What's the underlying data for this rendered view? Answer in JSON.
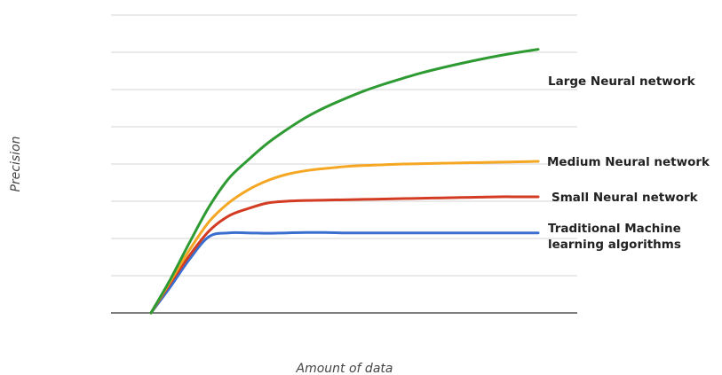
{
  "chart_data": {
    "type": "line",
    "title": "",
    "xlabel": "Amount of data",
    "ylabel": "Precision",
    "grid": true,
    "legend": "inline-right",
    "xlim": [
      0,
      1
    ],
    "ylim": [
      0,
      8
    ],
    "series": [
      {
        "name": "Large Neural network",
        "color": "#2e9a32",
        "x": [
          0,
          0.05,
          0.1,
          0.15,
          0.2,
          0.25,
          0.3,
          0.35,
          0.4,
          0.45,
          0.5,
          0.55,
          0.6,
          0.65,
          0.7,
          0.75,
          0.8,
          0.85,
          0.9,
          0.95,
          1.0
        ],
        "values": [
          0,
          0.9,
          1.9,
          2.85,
          3.6,
          4.1,
          4.55,
          4.92,
          5.25,
          5.52,
          5.75,
          5.96,
          6.14,
          6.3,
          6.45,
          6.58,
          6.7,
          6.81,
          6.91,
          7.0,
          7.08
        ]
      },
      {
        "name": "Medium Neural network",
        "color": "#f5a623",
        "x": [
          0,
          0.05,
          0.1,
          0.15,
          0.2,
          0.25,
          0.3,
          0.35,
          0.4,
          0.45,
          0.5,
          0.55,
          0.6,
          0.65,
          0.7,
          0.75,
          0.8,
          0.85,
          0.9,
          0.95,
          1.0
        ],
        "values": [
          0,
          0.85,
          1.7,
          2.45,
          2.95,
          3.3,
          3.55,
          3.72,
          3.82,
          3.88,
          3.93,
          3.96,
          3.98,
          4.0,
          4.01,
          4.02,
          4.03,
          4.04,
          4.05,
          4.06,
          4.07
        ]
      },
      {
        "name": "Small Neural network",
        "color": "#d33b22",
        "x": [
          0,
          0.05,
          0.1,
          0.15,
          0.2,
          0.25,
          0.3,
          0.35,
          0.4,
          0.45,
          0.5,
          0.55,
          0.6,
          0.65,
          0.7,
          0.75,
          0.8,
          0.85,
          0.9,
          0.95,
          1.0
        ],
        "values": [
          0,
          0.8,
          1.55,
          2.2,
          2.6,
          2.8,
          2.95,
          3.0,
          3.02,
          3.03,
          3.04,
          3.05,
          3.06,
          3.07,
          3.08,
          3.09,
          3.1,
          3.11,
          3.12,
          3.12,
          3.12
        ]
      },
      {
        "name": "Traditional Machine learning algorithms",
        "color": "#3a6fd0",
        "x": [
          0,
          0.05,
          0.1,
          0.15,
          0.2,
          0.25,
          0.3,
          0.35,
          0.4,
          0.45,
          0.5,
          0.55,
          0.6,
          0.65,
          0.7,
          0.75,
          0.8,
          0.85,
          0.9,
          0.95,
          1.0
        ],
        "values": [
          0,
          0.7,
          1.45,
          2.05,
          2.15,
          2.15,
          2.14,
          2.15,
          2.16,
          2.16,
          2.15,
          2.15,
          2.15,
          2.15,
          2.15,
          2.15,
          2.15,
          2.15,
          2.15,
          2.15,
          2.15
        ]
      }
    ]
  },
  "labels": {
    "large": "Large Neural network",
    "medium": "Medium Neural network",
    "small": "Small Neural network",
    "traditional_line1": "Traditional Machine",
    "traditional_line2": "learning algorithms",
    "xlabel": "Amount of data",
    "ylabel": "Precision"
  }
}
